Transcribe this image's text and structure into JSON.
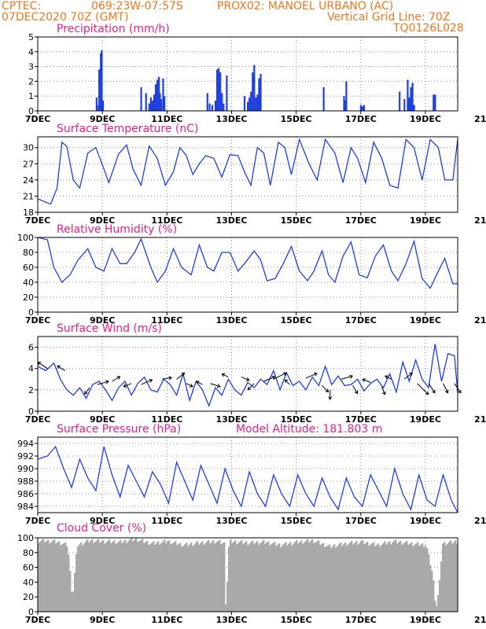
{
  "header": {
    "source": "CPTEC:",
    "coords": "069:23W-07:57S",
    "station": "PROX02: MANOEL URBANO (AC)",
    "run": "07DEC2020 70Z (GMT)",
    "grid_note": "Vertical Grid Line: 70Z",
    "model": "TQ0126L028"
  },
  "colors": {
    "accent": "#e8781e",
    "title": "#e0208c",
    "series": "#1f3fdc",
    "cloud": "#a9a9a9"
  },
  "chart_data": [
    {
      "type": "bar",
      "title": "Precipitation (mm/h)",
      "x_ticks": [
        "7DEC",
        "9DEC",
        "11DEC",
        "13DEC",
        "15DEC",
        "17DEC",
        "19DEC",
        "21DEC"
      ],
      "y_ticks": [
        "0",
        "1",
        "2",
        "3",
        "4",
        "5"
      ],
      "ylim": [
        0,
        5
      ],
      "x_unit": "days since 7DEC 00Z",
      "x": [
        1.82,
        1.88,
        1.9,
        1.95,
        1.98,
        2.02,
        3.2,
        3.35,
        3.45,
        3.5,
        3.55,
        3.6,
        3.65,
        3.7,
        3.75,
        3.78,
        3.82,
        3.88,
        3.92,
        5.25,
        5.32,
        5.4,
        5.5,
        5.55,
        5.6,
        5.65,
        5.7,
        5.75,
        5.85,
        6.4,
        6.5,
        6.55,
        6.6,
        6.65,
        6.7,
        6.75,
        6.8,
        6.85,
        6.9,
        8.85,
        9.48,
        9.52,
        9.55,
        10.0,
        10.05,
        10.1,
        11.2,
        11.35,
        11.45,
        11.5,
        11.55,
        11.6,
        11.65,
        12.25,
        12.3
      ],
      "values": [
        0.9,
        0.4,
        2.8,
        3.9,
        4.1,
        0.7,
        1.6,
        1.2,
        0.5,
        0.9,
        0.7,
        1.1,
        1.8,
        2.1,
        2.3,
        1.2,
        0.8,
        2.2,
        1.0,
        1.2,
        0.5,
        0.4,
        0.7,
        2.8,
        2.9,
        2.6,
        1.2,
        0.5,
        2.4,
        1.0,
        0.6,
        0.9,
        1.3,
        2.6,
        3.1,
        0.9,
        1.1,
        2.2,
        2.5,
        1.6,
        1.0,
        0.7,
        2.0,
        0.4,
        0.3,
        0.4,
        1.3,
        0.8,
        2.1,
        0.9,
        1.6,
        1.9,
        0.4,
        1.1,
        1.1
      ],
      "color": "#1f3fdc"
    },
    {
      "type": "line",
      "title": "Surface Temperature (nC)",
      "x_ticks": [
        "7DEC",
        "9DEC",
        "11DEC",
        "13DEC",
        "15DEC",
        "17DEC",
        "19DEC",
        "21DEC"
      ],
      "y_ticks": [
        "18",
        "21",
        "24",
        "27",
        "30"
      ],
      "ylim": [
        18,
        32
      ],
      "x": [
        0,
        0.4,
        0.6,
        0.75,
        0.9,
        1.1,
        1.3,
        1.55,
        1.8,
        2.05,
        2.2,
        2.5,
        2.75,
        2.95,
        3.2,
        3.45,
        3.7,
        3.95,
        4.2,
        4.4,
        4.6,
        4.8,
        5.0,
        5.2,
        5.45,
        5.7,
        5.95,
        6.2,
        6.4,
        6.6,
        6.8,
        7.0,
        7.2,
        7.45,
        7.65,
        7.85,
        8.1,
        8.4,
        8.65,
        8.9,
        9.2,
        9.45,
        9.7,
        9.9,
        10.15,
        10.4,
        10.65,
        10.9,
        11.15,
        11.4,
        11.65,
        11.9,
        12.15,
        12.4,
        12.6,
        12.85,
        13.0
      ],
      "values": [
        20.5,
        19.5,
        22.5,
        31.0,
        30.2,
        24.0,
        22.5,
        29.0,
        30.0,
        26.0,
        23.5,
        28.8,
        30.5,
        26.0,
        23.0,
        30.3,
        28.0,
        23.0,
        25.5,
        30.0,
        28.5,
        25.0,
        27.0,
        28.5,
        28.0,
        24.5,
        28.7,
        28.5,
        25.5,
        23.0,
        30.0,
        29.0,
        23.0,
        31.0,
        30.0,
        25.0,
        31.5,
        27.0,
        24.0,
        31.5,
        29.0,
        23.5,
        30.0,
        28.0,
        23.5,
        31.0,
        28.0,
        23.0,
        22.5,
        31.5,
        30.0,
        24.0,
        31.5,
        30.0,
        24.0,
        24.0,
        31.5
      ],
      "color": "#1f3fdc"
    },
    {
      "type": "line",
      "title": "Relative Humidity (%)",
      "x_ticks": [
        "7DEC",
        "9DEC",
        "11DEC",
        "13DEC",
        "15DEC",
        "17DEC",
        "19DEC",
        "21DEC"
      ],
      "y_ticks": [
        "0",
        "20",
        "40",
        "60",
        "80",
        "100"
      ],
      "ylim": [
        0,
        100
      ],
      "x": [
        0,
        0.3,
        0.5,
        0.75,
        1.0,
        1.25,
        1.55,
        1.8,
        2.05,
        2.3,
        2.55,
        2.75,
        3.0,
        3.2,
        3.5,
        3.7,
        3.95,
        4.2,
        4.45,
        4.75,
        5.0,
        5.25,
        5.45,
        5.7,
        5.95,
        6.2,
        6.4,
        6.7,
        6.9,
        7.1,
        7.35,
        7.6,
        7.85,
        8.1,
        8.35,
        8.55,
        8.8,
        9.0,
        9.2,
        9.45,
        9.7,
        9.95,
        10.2,
        10.45,
        10.7,
        10.95,
        11.15,
        11.4,
        11.65,
        11.9,
        12.15,
        12.4,
        12.6,
        12.85,
        13.0
      ],
      "values": [
        100,
        97,
        60,
        40,
        50,
        70,
        85,
        60,
        55,
        85,
        65,
        65,
        80,
        98,
        60,
        40,
        55,
        85,
        60,
        50,
        90,
        60,
        55,
        80,
        80,
        55,
        65,
        82,
        70,
        42,
        45,
        65,
        88,
        55,
        42,
        55,
        82,
        50,
        40,
        75,
        94,
        50,
        46,
        75,
        90,
        55,
        42,
        65,
        95,
        45,
        32,
        55,
        72,
        38,
        38
      ],
      "color": "#1f3fdc"
    },
    {
      "type": "line",
      "title": "Surface Wind (m/s)",
      "x_ticks": [
        "7DEC",
        "9DEC",
        "11DEC",
        "13DEC",
        "15DEC",
        "17DEC",
        "19DEC",
        "21DEC"
      ],
      "y_ticks": [
        "0",
        "2",
        "4",
        "6"
      ],
      "ylim": [
        0,
        7
      ],
      "x": [
        0,
        0.25,
        0.5,
        0.7,
        0.9,
        1.1,
        1.3,
        1.5,
        1.7,
        1.9,
        2.1,
        2.3,
        2.5,
        2.7,
        2.9,
        3.1,
        3.3,
        3.5,
        3.7,
        3.9,
        4.1,
        4.3,
        4.5,
        4.7,
        4.9,
        5.1,
        5.3,
        5.5,
        5.7,
        5.9,
        6.1,
        6.3,
        6.5,
        6.7,
        6.9,
        7.1,
        7.3,
        7.5,
        7.7,
        7.9,
        8.1,
        8.3,
        8.5,
        8.7,
        8.9,
        9.1,
        9.3,
        9.5,
        9.7,
        9.9,
        10.1,
        10.3,
        10.5,
        10.7,
        10.9,
        11.1,
        11.3,
        11.5,
        11.7,
        11.9,
        12.1,
        12.3,
        12.5,
        12.7,
        12.9,
        13.0
      ],
      "values": [
        4.2,
        3.8,
        4.5,
        3.0,
        2.0,
        1.5,
        2.2,
        1.2,
        2.5,
        2.8,
        2.0,
        1.0,
        2.2,
        2.8,
        1.5,
        2.6,
        3.2,
        2.0,
        1.8,
        3.0,
        2.5,
        1.5,
        3.5,
        1.0,
        2.8,
        2.0,
        0.5,
        2.2,
        1.5,
        3.0,
        2.0,
        1.5,
        2.7,
        2.2,
        3.0,
        2.5,
        3.8,
        2.0,
        3.6,
        2.4,
        2.8,
        2.0,
        3.2,
        2.4,
        4.2,
        2.5,
        3.3,
        2.4,
        2.5,
        3.0,
        1.9,
        2.6,
        3.0,
        2.2,
        3.5,
        1.8,
        4.6,
        2.8,
        4.8,
        3.0,
        2.2,
        6.3,
        2.8,
        5.4,
        5.2,
        1.7
      ],
      "vectors": [
        {
          "x": 0.3,
          "y": 4.0,
          "dx": -12,
          "dy": -8
        },
        {
          "x": 0.85,
          "y": 3.8,
          "dx": -10,
          "dy": -6
        },
        {
          "x": 1.6,
          "y": 2.2,
          "dx": -6,
          "dy": 8
        },
        {
          "x": 1.85,
          "y": 2.5,
          "dx": 14,
          "dy": -4
        },
        {
          "x": 2.3,
          "y": 2.8,
          "dx": 10,
          "dy": -6
        },
        {
          "x": 2.9,
          "y": 2.6,
          "dx": -10,
          "dy": 4
        },
        {
          "x": 3.2,
          "y": 2.5,
          "dx": 14,
          "dy": -6
        },
        {
          "x": 3.85,
          "y": 3.0,
          "dx": 12,
          "dy": -2
        },
        {
          "x": 4.3,
          "y": 3.0,
          "dx": 10,
          "dy": -8
        },
        {
          "x": 4.6,
          "y": 2.6,
          "dx": 8,
          "dy": 4
        },
        {
          "x": 5.1,
          "y": 2.5,
          "dx": -8,
          "dy": -4
        },
        {
          "x": 5.35,
          "y": 2.6,
          "dx": 12,
          "dy": 4
        },
        {
          "x": 5.9,
          "y": 3.2,
          "dx": -8,
          "dy": -4
        },
        {
          "x": 6.3,
          "y": 3.2,
          "dx": 10,
          "dy": 4
        },
        {
          "x": 6.7,
          "y": 2.6,
          "dx": -8,
          "dy": 8
        },
        {
          "x": 7.0,
          "y": 2.8,
          "dx": 14,
          "dy": -6
        },
        {
          "x": 7.3,
          "y": 3.0,
          "dx": 16,
          "dy": -8
        },
        {
          "x": 7.8,
          "y": 2.5,
          "dx": -6,
          "dy": -6
        },
        {
          "x": 8.3,
          "y": 3.1,
          "dx": 14,
          "dy": -6
        },
        {
          "x": 8.8,
          "y": 2.4,
          "dx": 8,
          "dy": 8
        },
        {
          "x": 9.05,
          "y": 2.0,
          "dx": 0,
          "dy": 12
        },
        {
          "x": 9.4,
          "y": 3.0,
          "dx": 14,
          "dy": -4
        },
        {
          "x": 9.75,
          "y": 2.4,
          "dx": 6,
          "dy": 10
        },
        {
          "x": 10.3,
          "y": 2.7,
          "dx": -10,
          "dy": -4
        },
        {
          "x": 10.65,
          "y": 2.3,
          "dx": 4,
          "dy": 10
        },
        {
          "x": 10.95,
          "y": 3.0,
          "dx": -8,
          "dy": -4
        },
        {
          "x": 11.35,
          "y": 3.0,
          "dx": 10,
          "dy": -8
        },
        {
          "x": 11.75,
          "y": 2.6,
          "dx": 14,
          "dy": 14
        },
        {
          "x": 12.1,
          "y": 2.6,
          "dx": 8,
          "dy": 12
        },
        {
          "x": 12.55,
          "y": 2.6,
          "dx": 6,
          "dy": 12
        },
        {
          "x": 12.9,
          "y": 2.6,
          "dx": 8,
          "dy": 12
        }
      ],
      "color": "#1f3fdc"
    },
    {
      "type": "line",
      "title": "Surface Pressure (hPa)",
      "subtitle": "Model Altitude: 181.803 m",
      "x_ticks": [
        "7DEC",
        "9DEC",
        "11DEC",
        "13DEC",
        "15DEC",
        "17DEC",
        "19DEC",
        "21DEC"
      ],
      "y_ticks": [
        "984",
        "986",
        "988",
        "990",
        "992",
        "994"
      ],
      "ylim": [
        983,
        995
      ],
      "x": [
        0,
        0.3,
        0.55,
        0.8,
        1.05,
        1.3,
        1.55,
        1.8,
        2.05,
        2.3,
        2.55,
        2.8,
        3.05,
        3.3,
        3.55,
        3.8,
        4.05,
        4.3,
        4.55,
        4.8,
        5.05,
        5.3,
        5.55,
        5.8,
        6.05,
        6.3,
        6.55,
        6.8,
        7.05,
        7.3,
        7.55,
        7.8,
        8.05,
        8.3,
        8.55,
        8.8,
        9.05,
        9.3,
        9.55,
        9.8,
        10.05,
        10.3,
        10.55,
        10.8,
        11.05,
        11.3,
        11.55,
        11.8,
        12.05,
        12.3,
        12.55,
        12.8,
        13.0
      ],
      "values": [
        991.5,
        992.0,
        993.5,
        990.0,
        987.0,
        991.5,
        988.5,
        986.5,
        993.5,
        989.0,
        985.5,
        990.5,
        988.0,
        985.5,
        989.5,
        987.5,
        984.5,
        991.0,
        988.0,
        985.0,
        990.5,
        987.5,
        984.5,
        990.0,
        986.5,
        984.0,
        989.5,
        986.0,
        984.0,
        989.0,
        986.0,
        984.0,
        989.0,
        986.0,
        984.0,
        988.5,
        985.5,
        983.5,
        988.5,
        985.5,
        984.0,
        989.0,
        986.5,
        984.0,
        990.0,
        986.0,
        983.5,
        989.0,
        985.0,
        984.0,
        989.0,
        985.0,
        983.0
      ],
      "color": "#1f3fdc"
    },
    {
      "type": "area",
      "title": "Cloud Cover (%)",
      "x_ticks": [
        "7DEC",
        "9DEC",
        "11DEC",
        "13DEC",
        "15DEC",
        "17DEC",
        "19DEC",
        "21DEC"
      ],
      "y_ticks": [
        "0",
        "20",
        "40",
        "60",
        "80",
        "100"
      ],
      "ylim": [
        0,
        100
      ],
      "x": [
        0,
        0.5,
        0.9,
        1.0,
        1.05,
        1.2,
        1.6,
        2.0,
        2.5,
        3.0,
        3.5,
        4.0,
        4.5,
        5.0,
        5.5,
        5.75,
        5.8,
        5.9,
        6.5,
        7.0,
        7.5,
        8.0,
        8.5,
        9.0,
        9.5,
        10.0,
        10.5,
        11.0,
        11.5,
        12.0,
        12.2,
        12.3,
        12.4,
        12.5,
        13.0
      ],
      "values": [
        96,
        95,
        90,
        40,
        18,
        90,
        96,
        95,
        94,
        98,
        92,
        95,
        90,
        93,
        95,
        92,
        2,
        95,
        93,
        94,
        90,
        94,
        96,
        88,
        92,
        94,
        90,
        95,
        92,
        90,
        50,
        4,
        30,
        92,
        95
      ],
      "color": "#a9a9a9"
    }
  ]
}
